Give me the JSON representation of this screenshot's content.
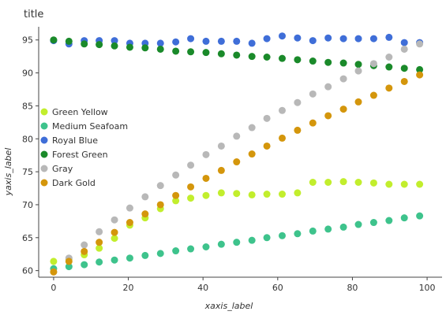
{
  "chart_data": {
    "type": "scatter",
    "title": "title",
    "xlabel": "xaxis_label",
    "ylabel": "yaxis_label",
    "xlim": [
      -4,
      104
    ],
    "ylim": [
      59,
      97
    ],
    "xticks": [
      0,
      20,
      40,
      60,
      80,
      100
    ],
    "yticks": [
      60,
      65,
      70,
      75,
      80,
      85,
      90,
      95
    ],
    "grid": false,
    "legend_position": "left-middle",
    "x": [
      0,
      4.1,
      8.2,
      12.2,
      16.3,
      20.4,
      24.5,
      28.6,
      32.7,
      36.7,
      40.8,
      44.9,
      49.0,
      53.1,
      57.1,
      61.2,
      65.3,
      69.4,
      73.5,
      77.6,
      81.6,
      85.7,
      89.8,
      93.9,
      98.0
    ],
    "series": [
      {
        "name": "Green Yellow",
        "color": "#c2ee2d",
        "values": [
          61.4,
          61.7,
          62.4,
          63.4,
          64.9,
          66.9,
          68.0,
          69.4,
          70.6,
          71.0,
          71.4,
          71.8,
          71.7,
          71.5,
          71.6,
          71.6,
          71.8,
          73.4,
          73.4,
          73.5,
          73.4,
          73.3,
          73.1,
          73.1,
          73.1
        ]
      },
      {
        "name": "Medium Seafoam",
        "color": "#3ec38c",
        "values": [
          60.3,
          60.6,
          60.9,
          61.3,
          61.6,
          61.9,
          62.3,
          62.6,
          63.0,
          63.3,
          63.6,
          64.0,
          64.3,
          64.6,
          65.0,
          65.3,
          65.6,
          66.0,
          66.3,
          66.6,
          67.0,
          67.3,
          67.6,
          68.0,
          68.3
        ]
      },
      {
        "name": "Royal Blue",
        "color": "#3f6ed8",
        "values": [
          94.9,
          94.4,
          94.9,
          94.9,
          94.9,
          94.5,
          94.5,
          94.5,
          94.7,
          95.2,
          94.8,
          94.8,
          94.8,
          94.5,
          95.2,
          95.6,
          95.3,
          94.9,
          95.3,
          95.2,
          95.2,
          95.2,
          95.4,
          94.6,
          94.6
        ]
      },
      {
        "name": "Forest Green",
        "color": "#1a8a2a",
        "values": [
          95.0,
          94.8,
          94.4,
          94.3,
          94.1,
          93.9,
          93.8,
          93.6,
          93.3,
          93.2,
          93.1,
          92.9,
          92.7,
          92.5,
          92.4,
          92.2,
          92.0,
          91.8,
          91.6,
          91.5,
          91.3,
          91.1,
          90.9,
          90.7,
          90.5
        ]
      },
      {
        "name": "Gray",
        "color": "#b8b8b8",
        "values": [
          59.8,
          61.9,
          63.9,
          65.9,
          67.7,
          69.5,
          71.2,
          72.9,
          74.5,
          76.0,
          77.6,
          78.9,
          80.4,
          81.7,
          83.1,
          84.3,
          85.5,
          86.8,
          87.9,
          89.1,
          90.3,
          91.4,
          92.4,
          93.6,
          94.4
        ]
      },
      {
        "name": "Dark Gold",
        "color": "#d4960c",
        "values": [
          59.8,
          61.4,
          62.9,
          64.3,
          65.8,
          67.3,
          68.6,
          70.0,
          71.4,
          72.7,
          74.0,
          75.2,
          76.5,
          77.7,
          78.9,
          80.1,
          81.3,
          82.4,
          83.5,
          84.5,
          85.6,
          86.6,
          87.7,
          88.7,
          89.7
        ]
      }
    ]
  }
}
